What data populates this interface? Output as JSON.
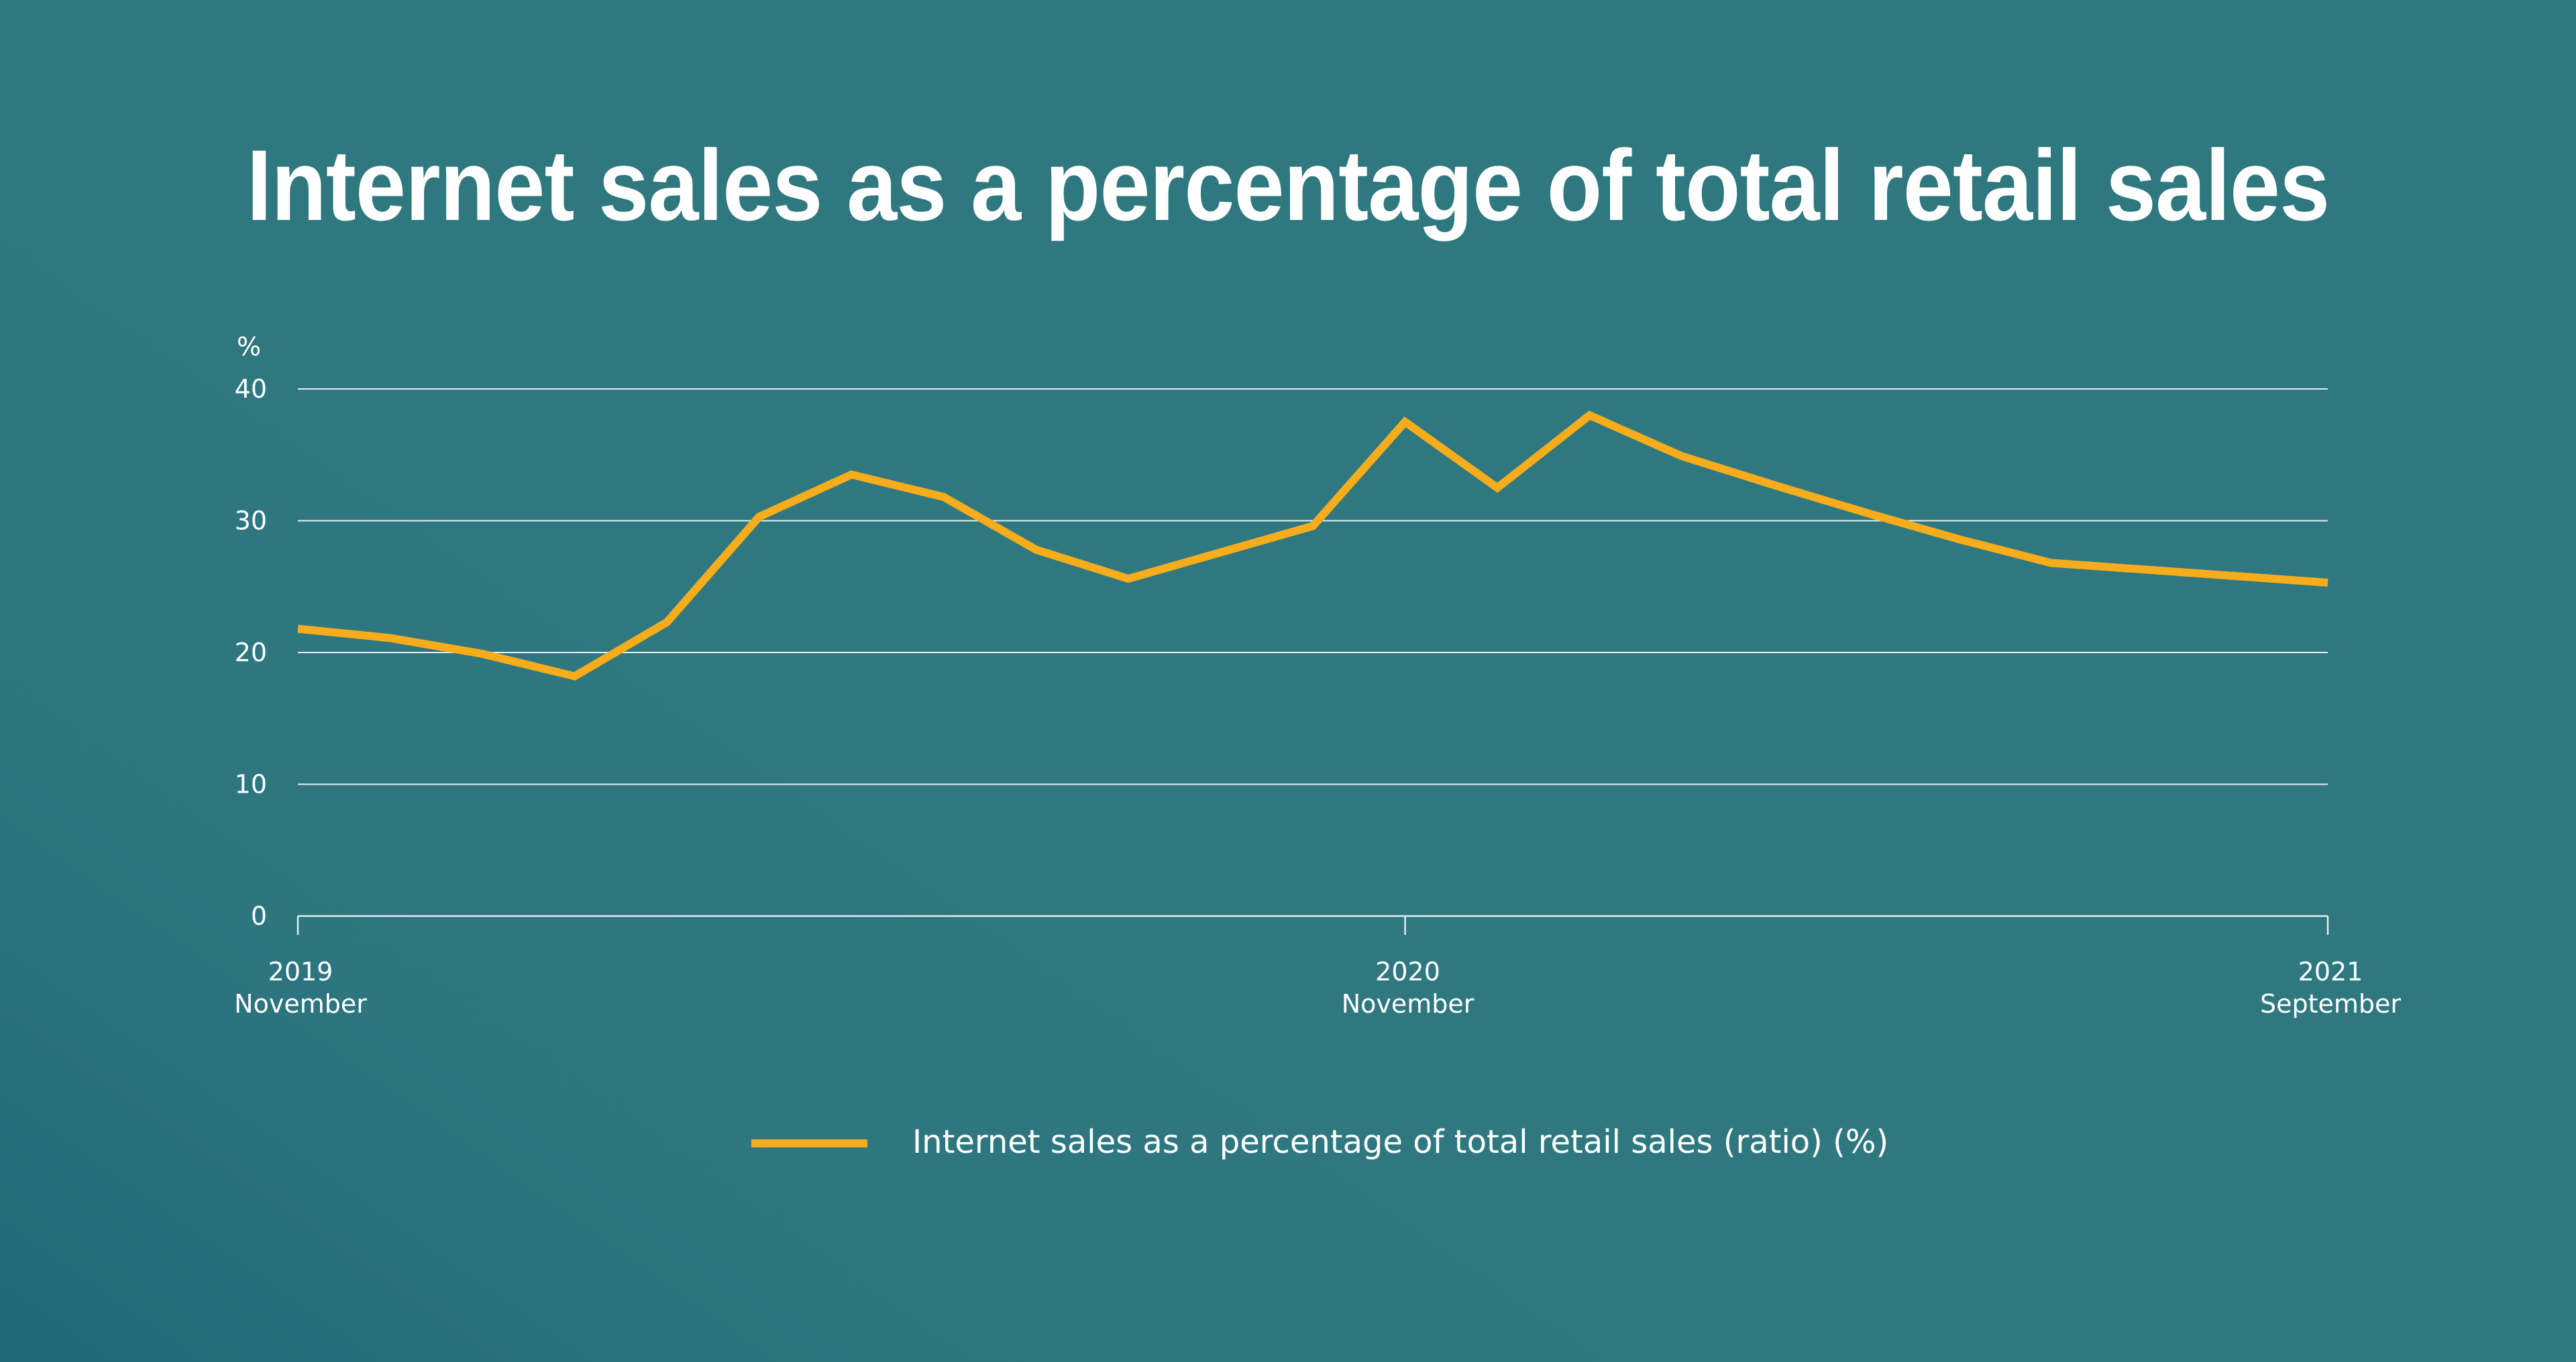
{
  "chart_data": {
    "type": "line",
    "title": "Internet sales as a percentage of total retail sales",
    "y_unit_label": "%",
    "ylim": [
      0,
      40
    ],
    "y_ticks": [
      0,
      10,
      20,
      30,
      40
    ],
    "x_tick_labels": [
      {
        "year": "2019",
        "month": "November"
      },
      {
        "year": "2020",
        "month": "November"
      },
      {
        "year": "2021",
        "month": "September"
      }
    ],
    "x": [
      "2019-11",
      "2019-12",
      "2020-01",
      "2020-02",
      "2020-03",
      "2020-04",
      "2020-05",
      "2020-06",
      "2020-07",
      "2020-08",
      "2020-09",
      "2020-10",
      "2020-11",
      "2020-12",
      "2021-01",
      "2021-02",
      "2021-03",
      "2021-04",
      "2021-05",
      "2021-06",
      "2021-07",
      "2021-08",
      "2021-09"
    ],
    "series": [
      {
        "name": "Internet sales as a percentage of total retail sales (ratio) (%)",
        "color": "#f7ac1c",
        "values": [
          21.8,
          21.1,
          19.9,
          18.2,
          22.3,
          30.3,
          33.5,
          31.8,
          27.8,
          25.6,
          27.6,
          29.6,
          37.5,
          32.5,
          38.0,
          34.9,
          32.7,
          30.6,
          28.6,
          26.8,
          26.3,
          25.8,
          25.3
        ]
      }
    ],
    "grid": true,
    "legend_position": "bottom-center",
    "colors": {
      "background": "#2f7880",
      "line": "#f7ac1c",
      "grid": "#e6eef0",
      "text": "#ffffff"
    }
  }
}
